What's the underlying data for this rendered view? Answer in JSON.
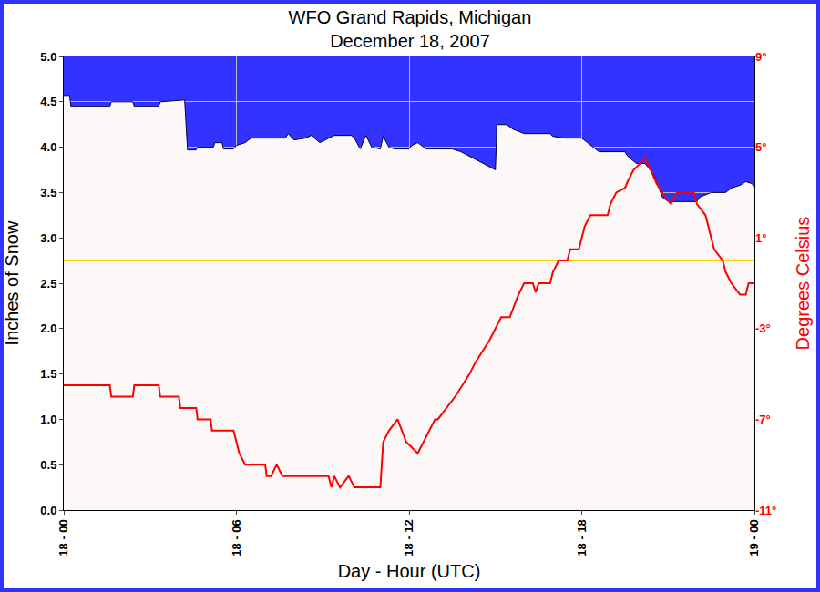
{
  "chart_data": {
    "type": "line",
    "title": "WFO Grand Rapids, Michigan",
    "subtitle": "December 18, 2007",
    "x_label": "Day - Hour (UTC)",
    "y_label": "Inches of Snow",
    "y2_label": "Degrees Celsius",
    "color": "#3333ff",
    "grid": true,
    "xlim": [
      0,
      24
    ],
    "xticks": [
      {
        "value": 0,
        "label": "18 - 00"
      },
      {
        "value": 6,
        "label": "18 - 06"
      },
      {
        "value": 12,
        "label": "18 - 12"
      },
      {
        "value": 18,
        "label": "18 - 18"
      },
      {
        "value": 24,
        "label": "19 - 00"
      }
    ],
    "ylim": [
      0,
      5
    ],
    "yticks": [
      {
        "value": 0,
        "label": "0.0"
      },
      0.5,
      {
        "value": 1,
        "label": "1.0"
      },
      1.5,
      {
        "value": 2,
        "label": "2.0"
      },
      2.5,
      {
        "value": 3,
        "label": "3.0"
      },
      3.5,
      {
        "value": 4,
        "label": "4.0"
      },
      4.5,
      {
        "value": 5,
        "label": "5.0"
      }
    ],
    "y2lim": [
      -11,
      9
    ],
    "y2ticks": [
      {
        "value": -11,
        "label": "-11°"
      },
      {
        "value": -7,
        "label": "-7°"
      },
      {
        "value": -3,
        "label": "-3°"
      },
      {
        "value": 1,
        "label": "1°"
      },
      {
        "value": 5,
        "label": "5°"
      },
      {
        "value": 9,
        "label": "9°"
      }
    ],
    "series": [
      {
        "type": "area",
        "color": "#fcf8f8",
        "axis": "y",
        "x": [
          0,
          0.2,
          0.25,
          1.6,
          1.65,
          2.4,
          2.45,
          3.3,
          3.35,
          4.1,
          4.2,
          4.3,
          4.6,
          4.65,
          5.2,
          5.25,
          5.5,
          5.55,
          5.9,
          6.0,
          6.3,
          6.5,
          7.7,
          7.8,
          8.0,
          8.4,
          8.6,
          8.9,
          9.2,
          9.4,
          10.0,
          10.1,
          10.3,
          10.5,
          10.7,
          11.0,
          11.1,
          11.3,
          11.5,
          12.0,
          12.1,
          12.3,
          12.6,
          13.5,
          13.8,
          14.1,
          14.4,
          14.7,
          15.0,
          15.05,
          15.4,
          15.6,
          16.0,
          16.9,
          17.0,
          17.4,
          18.0,
          18.2,
          18.4,
          18.6,
          19.5,
          19.6,
          19.9,
          20.2,
          20.5,
          20.8,
          21.0,
          22.0,
          22.1,
          22.5,
          23.0,
          23.2,
          23.5,
          23.7,
          23.9,
          24.0
        ],
        "values": [
          4.57,
          4.57,
          4.45,
          4.45,
          4.5,
          4.5,
          4.45,
          4.45,
          4.5,
          4.52,
          4.52,
          3.97,
          3.97,
          4.0,
          4.0,
          4.05,
          4.05,
          3.98,
          3.98,
          4.02,
          4.05,
          4.1,
          4.1,
          4.15,
          4.08,
          4.1,
          4.13,
          4.05,
          4.1,
          4.13,
          4.13,
          4.1,
          3.98,
          4.13,
          4.0,
          3.98,
          4.12,
          4.0,
          3.98,
          3.98,
          4.02,
          4.05,
          3.98,
          3.98,
          3.95,
          3.9,
          3.85,
          3.8,
          3.75,
          4.25,
          4.25,
          4.2,
          4.15,
          4.15,
          4.12,
          4.1,
          4.1,
          4.05,
          4.0,
          3.95,
          3.95,
          3.9,
          3.82,
          3.82,
          3.7,
          3.45,
          3.4,
          3.4,
          3.45,
          3.5,
          3.5,
          3.55,
          3.58,
          3.62,
          3.6,
          3.57
        ]
      },
      {
        "type": "line",
        "color": "#ffcc00",
        "axis": "y2",
        "x": [
          0,
          24
        ],
        "values": [
          0,
          0
        ]
      },
      {
        "type": "line",
        "color": "#ff0000",
        "axis": "y2",
        "x": [
          0,
          1.6,
          1.65,
          2.4,
          2.45,
          3.3,
          3.35,
          4.0,
          4.05,
          4.6,
          4.65,
          5.1,
          5.15,
          5.9,
          6.0,
          6.1,
          6.3,
          7.0,
          7.05,
          7.2,
          7.4,
          7.6,
          9.2,
          9.3,
          9.4,
          9.6,
          9.9,
          10.1,
          11.0,
          11.1,
          11.3,
          11.6,
          11.9,
          12.3,
          12.9,
          13.0,
          13.6,
          14.1,
          14.3,
          14.8,
          15.2,
          15.5,
          15.8,
          16.0,
          16.3,
          16.4,
          16.5,
          16.9,
          17.0,
          17.2,
          17.5,
          17.6,
          17.9,
          18.0,
          18.1,
          18.3,
          18.9,
          19.0,
          19.2,
          19.5,
          19.6,
          19.8,
          20.2,
          20.4,
          20.6,
          20.9,
          21.1,
          21.3,
          21.9,
          22.0,
          22.3,
          22.5,
          22.6,
          22.9,
          23.0,
          23.2,
          23.5,
          23.7,
          23.8,
          24.0
        ],
        "values": [
          -5.5,
          -5.5,
          -6,
          -6,
          -5.5,
          -5.5,
          -6,
          -6,
          -6.5,
          -6.5,
          -7,
          -7,
          -7.5,
          -7.5,
          -8,
          -8.5,
          -9,
          -9,
          -9.5,
          -9.5,
          -9,
          -9.5,
          -9.5,
          -10,
          -9.5,
          -10,
          -9.5,
          -10,
          -10,
          -8,
          -7.5,
          -7,
          -8,
          -8.5,
          -7,
          -7,
          -6,
          -5,
          -4.5,
          -3.5,
          -2.5,
          -2.5,
          -1.5,
          -1,
          -1,
          -1.4,
          -1,
          -1,
          -0.5,
          0,
          0,
          0.5,
          0.5,
          1,
          1.5,
          2,
          2,
          2.5,
          3,
          3.2,
          3.5,
          4,
          4.5,
          4,
          3.4,
          2.8,
          2.5,
          3,
          3,
          2.5,
          2,
          1,
          0.5,
          0,
          -0.5,
          -1,
          -1.5,
          -1.5,
          -1,
          -1
        ]
      }
    ]
  }
}
